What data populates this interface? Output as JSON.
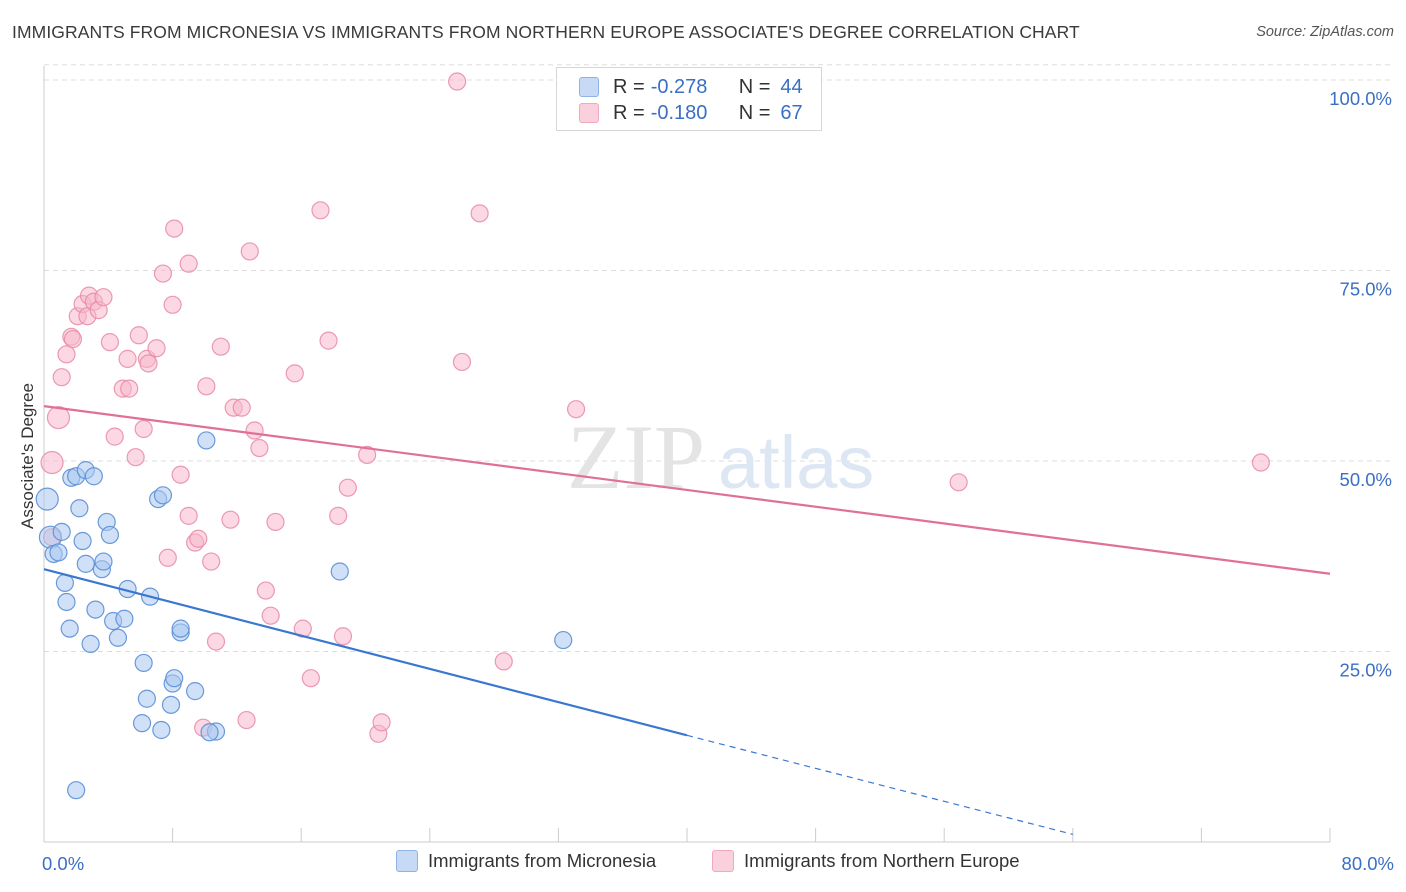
{
  "title": "IMMIGRANTS FROM MICRONESIA VS IMMIGRANTS FROM NORTHERN EUROPE ASSOCIATE'S DEGREE CORRELATION CHART",
  "source": "Source: ZipAtlas.com",
  "watermark": {
    "zip": "ZIP",
    "atlas": "atlas"
  },
  "stats": {
    "micronesia": {
      "r_label": "R =",
      "r_value": "-0.278",
      "n_label": "N =",
      "n_value": "44"
    },
    "northern_europe": {
      "r_label": "R =",
      "r_value": "-0.180",
      "n_label": "N =",
      "n_value": "67"
    }
  },
  "colors": {
    "micronesia_fill": "#a9c8f0",
    "micronesia_stroke": "#5b8fd6",
    "micronesia_line": "#3a78d0",
    "northern_europe_fill": "#f7b8cc",
    "northern_europe_stroke": "#e88aa6",
    "northern_europe_line": "#e07098",
    "tick_label": "#3a6fc4",
    "grid": "#dddddd"
  },
  "chart_data": {
    "type": "scatter",
    "title": "IMMIGRANTS FROM MICRONESIA VS IMMIGRANTS FROM NORTHERN EUROPE ASSOCIATE'S DEGREE CORRELATION CHART",
    "xlabel": "",
    "ylabel": "Associate's Degree",
    "xlim": [
      0,
      80
    ],
    "ylim": [
      0,
      102
    ],
    "x_tick_labels": [
      "0.0%",
      "80.0%"
    ],
    "y_ticks": [
      25,
      50,
      75,
      100
    ],
    "y_tick_labels": [
      "25.0%",
      "50.0%",
      "75.0%",
      "100.0%"
    ],
    "grid": true,
    "legend_position": "bottom",
    "series": [
      {
        "name": "Immigrants from Micronesia",
        "trend": {
          "x_start": 0,
          "y_start": 35.8,
          "x_solid_end": 40,
          "y_solid_end": 14.0,
          "x_dashed_end": 64,
          "y_dashed_end": 1.0
        },
        "points": [
          [
            0.2,
            45.0
          ],
          [
            0.4,
            40.0
          ],
          [
            0.6,
            37.8
          ],
          [
            0.9,
            38.0
          ],
          [
            1.1,
            40.7
          ],
          [
            1.3,
            34.0
          ],
          [
            1.4,
            31.5
          ],
          [
            1.6,
            28.0
          ],
          [
            1.7,
            47.8
          ],
          [
            2.0,
            48.0
          ],
          [
            2.2,
            43.8
          ],
          [
            2.4,
            39.5
          ],
          [
            2.6,
            36.5
          ],
          [
            2.6,
            48.8
          ],
          [
            2.9,
            26.0
          ],
          [
            3.1,
            48.0
          ],
          [
            3.2,
            30.5
          ],
          [
            3.6,
            35.8
          ],
          [
            3.7,
            36.8
          ],
          [
            3.9,
            42.0
          ],
          [
            4.1,
            40.3
          ],
          [
            4.3,
            29.0
          ],
          [
            4.6,
            26.8
          ],
          [
            5.0,
            29.3
          ],
          [
            5.2,
            33.2
          ],
          [
            6.2,
            23.5
          ],
          [
            6.4,
            18.8
          ],
          [
            6.6,
            32.2
          ],
          [
            7.1,
            45.0
          ],
          [
            7.4,
            45.5
          ],
          [
            7.9,
            18.0
          ],
          [
            8.0,
            20.8
          ],
          [
            8.1,
            21.5
          ],
          [
            8.5,
            27.5
          ],
          [
            9.4,
            19.8
          ],
          [
            10.1,
            52.7
          ],
          [
            10.7,
            14.5
          ],
          [
            6.1,
            15.6
          ],
          [
            7.3,
            14.7
          ],
          [
            18.4,
            35.5
          ],
          [
            32.3,
            26.5
          ],
          [
            2.0,
            6.8
          ],
          [
            8.5,
            28.0
          ],
          [
            10.3,
            14.4
          ]
        ]
      },
      {
        "name": "Immigrants from Northern Europe",
        "trend": {
          "x_start": 0,
          "y_start": 57.2,
          "x_end": 80,
          "y_end": 35.2
        },
        "points": [
          [
            0.5,
            49.8
          ],
          [
            0.5,
            40.0
          ],
          [
            0.9,
            55.7
          ],
          [
            1.1,
            61.0
          ],
          [
            1.4,
            64.0
          ],
          [
            1.7,
            66.3
          ],
          [
            1.8,
            66.0
          ],
          [
            2.1,
            69.0
          ],
          [
            2.4,
            70.6
          ],
          [
            2.7,
            69.0
          ],
          [
            2.8,
            71.7
          ],
          [
            3.1,
            70.9
          ],
          [
            3.4,
            69.8
          ],
          [
            3.7,
            71.5
          ],
          [
            4.1,
            65.6
          ],
          [
            4.4,
            53.2
          ],
          [
            4.9,
            59.5
          ],
          [
            5.2,
            63.4
          ],
          [
            5.3,
            59.5
          ],
          [
            5.7,
            50.5
          ],
          [
            5.9,
            66.5
          ],
          [
            6.2,
            54.2
          ],
          [
            6.4,
            63.4
          ],
          [
            6.5,
            62.8
          ],
          [
            7.0,
            64.8
          ],
          [
            7.4,
            74.6
          ],
          [
            7.7,
            37.3
          ],
          [
            8.0,
            70.5
          ],
          [
            8.1,
            80.5
          ],
          [
            8.5,
            48.2
          ],
          [
            9.0,
            75.9
          ],
          [
            9.0,
            42.8
          ],
          [
            9.4,
            39.3
          ],
          [
            9.6,
            39.8
          ],
          [
            9.9,
            15.0
          ],
          [
            10.1,
            59.8
          ],
          [
            10.4,
            36.8
          ],
          [
            10.7,
            26.3
          ],
          [
            11.0,
            65.0
          ],
          [
            11.6,
            42.3
          ],
          [
            11.8,
            57.0
          ],
          [
            12.3,
            57.0
          ],
          [
            12.6,
            16.0
          ],
          [
            12.8,
            77.5
          ],
          [
            13.1,
            54.0
          ],
          [
            13.4,
            51.7
          ],
          [
            13.8,
            33.0
          ],
          [
            14.1,
            29.7
          ],
          [
            14.4,
            42.0
          ],
          [
            15.6,
            61.5
          ],
          [
            16.1,
            28.0
          ],
          [
            16.6,
            21.5
          ],
          [
            17.2,
            82.9
          ],
          [
            17.7,
            65.8
          ],
          [
            18.3,
            42.8
          ],
          [
            18.6,
            27.0
          ],
          [
            18.9,
            46.5
          ],
          [
            20.1,
            50.8
          ],
          [
            20.8,
            14.2
          ],
          [
            21.0,
            15.7
          ],
          [
            25.7,
            99.8
          ],
          [
            26.0,
            63.0
          ],
          [
            27.1,
            82.5
          ],
          [
            28.6,
            23.7
          ],
          [
            33.1,
            56.8
          ],
          [
            56.9,
            47.2
          ],
          [
            75.7,
            49.8
          ]
        ]
      }
    ]
  },
  "legend": {
    "micronesia": "Immigrants from Micronesia",
    "northern_europe": "Immigrants from Northern Europe"
  },
  "axes": {
    "x_min_label": "0.0%",
    "x_max_label": "80.0%",
    "y_label": "Associate's Degree"
  }
}
